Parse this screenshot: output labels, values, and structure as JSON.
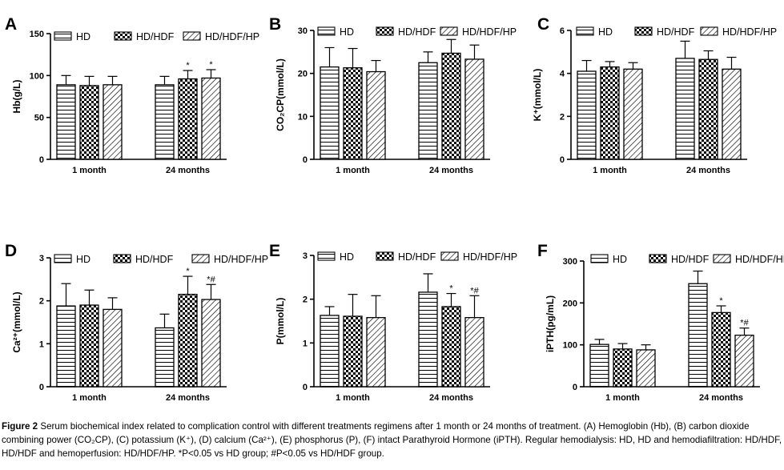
{
  "figure": {
    "legend": [
      "HD",
      "HD/HDF",
      "HD/HDF/HP"
    ],
    "series_names": [
      "HD",
      "HD/HDF",
      "HD/HDF/HP"
    ],
    "groups": [
      "1 month",
      "24 months"
    ]
  },
  "caption": {
    "figure_label": "Figure 2",
    "body": "Serum biochemical index related to complication control with different treatments regimens after 1 month or 24 months of treatment. (A) Hemoglobin (Hb), (B) carbon dioxide combining power (CO₂CP), (C) potassium (K⁺), (D) calcium (Ca²⁺), (E) phosphorus (P), (F) intact Parathyroid Hormone (iPTH). Regular hemodialysis: HD, HD and hemodiafiltration: HD/HDF, HD/HDF and hemoperfusion: HD/HDF/HP. *P<0.05 vs HD group; #P<0.05 vs HD/HDF group."
  },
  "chart_data": [
    {
      "panel": "A",
      "type": "bar",
      "ylabel": "Hb(g/L)",
      "ylim": [
        0,
        150
      ],
      "yticks": [
        0,
        50,
        100,
        150
      ],
      "ytick_labels": [
        "0",
        "50",
        "100",
        "150"
      ],
      "categories": [
        "1 month",
        "24 months"
      ],
      "series": [
        {
          "name": "HD",
          "values": [
            89,
            89
          ],
          "errors": [
            11,
            10
          ]
        },
        {
          "name": "HD/HDF",
          "values": [
            88,
            96
          ],
          "errors": [
            11,
            10
          ]
        },
        {
          "name": "HD/HDF/HP",
          "values": [
            89,
            97
          ],
          "errors": [
            10,
            10
          ]
        }
      ],
      "annotations": [
        [
          "",
          ""
        ],
        [
          "",
          "*"
        ],
        [
          "",
          "*"
        ]
      ],
      "legend": "top"
    },
    {
      "panel": "B",
      "type": "bar",
      "ylabel": "CO₂CP(mmol/L)",
      "ylim": [
        0,
        30
      ],
      "yticks": [
        0,
        10,
        20,
        30
      ],
      "ytick_labels": [
        "0",
        "10",
        "20",
        "30"
      ],
      "categories": [
        "1 month",
        "24 months"
      ],
      "series": [
        {
          "name": "HD",
          "values": [
            21.5,
            22.5
          ],
          "errors": [
            4.5,
            2.5
          ]
        },
        {
          "name": "HD/HDF",
          "values": [
            21.3,
            24.7
          ],
          "errors": [
            4.5,
            3.2
          ]
        },
        {
          "name": "HD/HDF/HP",
          "values": [
            20.4,
            23.3
          ],
          "errors": [
            2.6,
            3.3
          ]
        }
      ],
      "annotations": [
        [
          "",
          ""
        ],
        [
          "",
          ""
        ],
        [
          "",
          ""
        ]
      ],
      "legend": "top"
    },
    {
      "panel": "C",
      "type": "bar",
      "ylabel": "K⁺(mmol/L)",
      "ylim": [
        0,
        6
      ],
      "yticks": [
        0,
        2,
        4,
        6
      ],
      "ytick_labels": [
        "0",
        "2",
        "4",
        "6"
      ],
      "categories": [
        "1 month",
        "24 months"
      ],
      "series": [
        {
          "name": "HD",
          "values": [
            4.1,
            4.7
          ],
          "errors": [
            0.5,
            0.8
          ]
        },
        {
          "name": "HD/HDF",
          "values": [
            4.3,
            4.65
          ],
          "errors": [
            0.25,
            0.4
          ]
        },
        {
          "name": "HD/HDF/HP",
          "values": [
            4.2,
            4.2
          ],
          "errors": [
            0.3,
            0.55
          ]
        }
      ],
      "annotations": [
        [
          "",
          ""
        ],
        [
          "",
          ""
        ],
        [
          "",
          ""
        ]
      ],
      "legend": "top"
    },
    {
      "panel": "D",
      "type": "bar",
      "ylabel": "Ca²⁺(mmol/L)",
      "ylim": [
        0,
        3
      ],
      "yticks": [
        0,
        1,
        2,
        3
      ],
      "ytick_labels": [
        "0",
        "1",
        "2",
        "3"
      ],
      "categories": [
        "1 month",
        "24 months"
      ],
      "series": [
        {
          "name": "HD",
          "values": [
            1.88,
            1.37
          ],
          "errors": [
            0.52,
            0.32
          ]
        },
        {
          "name": "HD/HDF",
          "values": [
            1.9,
            2.15
          ],
          "errors": [
            0.35,
            0.42
          ]
        },
        {
          "name": "HD/HDF/HP",
          "values": [
            1.8,
            2.03
          ],
          "errors": [
            0.27,
            0.35
          ]
        }
      ],
      "annotations": [
        [
          "",
          ""
        ],
        [
          "",
          "*"
        ],
        [
          "",
          "*#"
        ]
      ],
      "legend": "top"
    },
    {
      "panel": "E",
      "type": "bar",
      "ylabel": "P(mmol/L)",
      "ylim": [
        0,
        3
      ],
      "yticks": [
        0,
        1,
        2,
        3
      ],
      "ytick_labels": [
        "0",
        "1",
        "2",
        "3"
      ],
      "categories": [
        "1 month",
        "24 months"
      ],
      "series": [
        {
          "name": "HD",
          "values": [
            1.63,
            2.16
          ],
          "errors": [
            0.2,
            0.42
          ]
        },
        {
          "name": "HD/HDF",
          "values": [
            1.61,
            1.83
          ],
          "errors": [
            0.5,
            0.3
          ]
        },
        {
          "name": "HD/HDF/HP",
          "values": [
            1.58,
            1.58
          ],
          "errors": [
            0.5,
            0.5
          ]
        }
      ],
      "annotations": [
        [
          "",
          ""
        ],
        [
          "",
          "*"
        ],
        [
          "",
          "*#"
        ]
      ],
      "legend": "top"
    },
    {
      "panel": "F",
      "type": "bar",
      "ylabel": "iPTH(pg/mL)",
      "ylim": [
        0,
        300
      ],
      "yticks": [
        0,
        100,
        200,
        300
      ],
      "ytick_labels": [
        "0",
        "100",
        "200",
        "300"
      ],
      "categories": [
        "1 month",
        "24 months"
      ],
      "series": [
        {
          "name": "HD",
          "values": [
            101,
            246
          ],
          "errors": [
            12,
            30
          ]
        },
        {
          "name": "HD/HDF",
          "values": [
            90,
            177
          ],
          "errors": [
            13,
            16
          ]
        },
        {
          "name": "HD/HDF/HP",
          "values": [
            88,
            123
          ],
          "errors": [
            12,
            17
          ]
        }
      ],
      "annotations": [
        [
          "",
          ""
        ],
        [
          "",
          "*"
        ],
        [
          "",
          "*#"
        ]
      ],
      "legend": "top"
    }
  ]
}
